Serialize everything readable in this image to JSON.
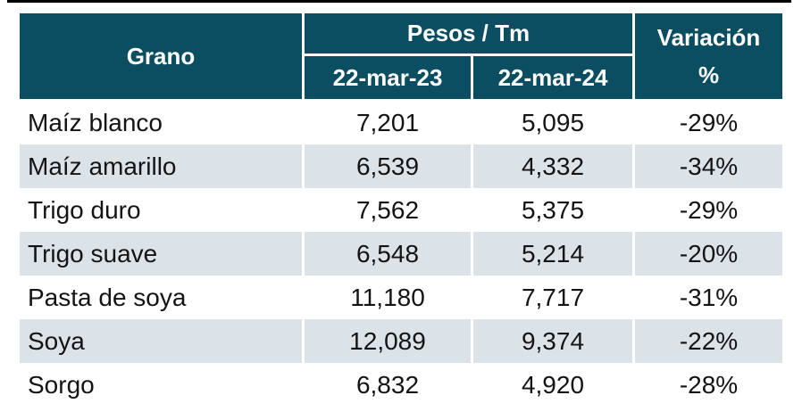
{
  "chart_data": {
    "type": "table",
    "title": "",
    "columns": [
      "Grano",
      "Pesos / Tm — 22-mar-23",
      "Pesos / Tm — 22-mar-24",
      "Variación %"
    ],
    "rows": [
      [
        "Maíz blanco",
        7201,
        5095,
        "-29%"
      ],
      [
        "Maíz amarillo",
        6539,
        4332,
        "-34%"
      ],
      [
        "Trigo duro",
        7562,
        5375,
        "-29%"
      ],
      [
        "Trigo suave",
        6548,
        5214,
        "-20%"
      ],
      [
        "Pasta de soya",
        11180,
        7717,
        "-31%"
      ],
      [
        "Soya",
        12089,
        9374,
        "-22%"
      ],
      [
        "Sorgo",
        6832,
        4920,
        "-28%"
      ]
    ]
  },
  "table": {
    "header": {
      "grano": "Grano",
      "group": "Pesos / Tm",
      "col1": "22-mar-23",
      "col2": "22-mar-24",
      "variacion_line1": "Variación",
      "variacion_line2": "%"
    },
    "rows": [
      {
        "grano": "Maíz blanco",
        "y23": "7,201",
        "y24": "5,095",
        "var": "-29%"
      },
      {
        "grano": "Maíz amarillo",
        "y23": "6,539",
        "y24": "4,332",
        "var": "-34%"
      },
      {
        "grano": "Trigo duro",
        "y23": "7,562",
        "y24": "5,375",
        "var": "-29%"
      },
      {
        "grano": "Trigo suave",
        "y23": "6,548",
        "y24": "5,214",
        "var": "-20%"
      },
      {
        "grano": "Pasta de soya",
        "y23": "11,180",
        "y24": "7,717",
        "var": "-31%"
      },
      {
        "grano": "Soya",
        "y23": "12,089",
        "y24": "9,374",
        "var": "-22%"
      },
      {
        "grano": "Sorgo",
        "y23": "6,832",
        "y24": "4,920",
        "var": "-28%"
      }
    ]
  },
  "colors": {
    "header_bg": "#0b4d61",
    "header_text": "#ffffff",
    "row_alt_bg": "#dce3e8",
    "body_text": "#141414",
    "top_rule": "#000000"
  }
}
